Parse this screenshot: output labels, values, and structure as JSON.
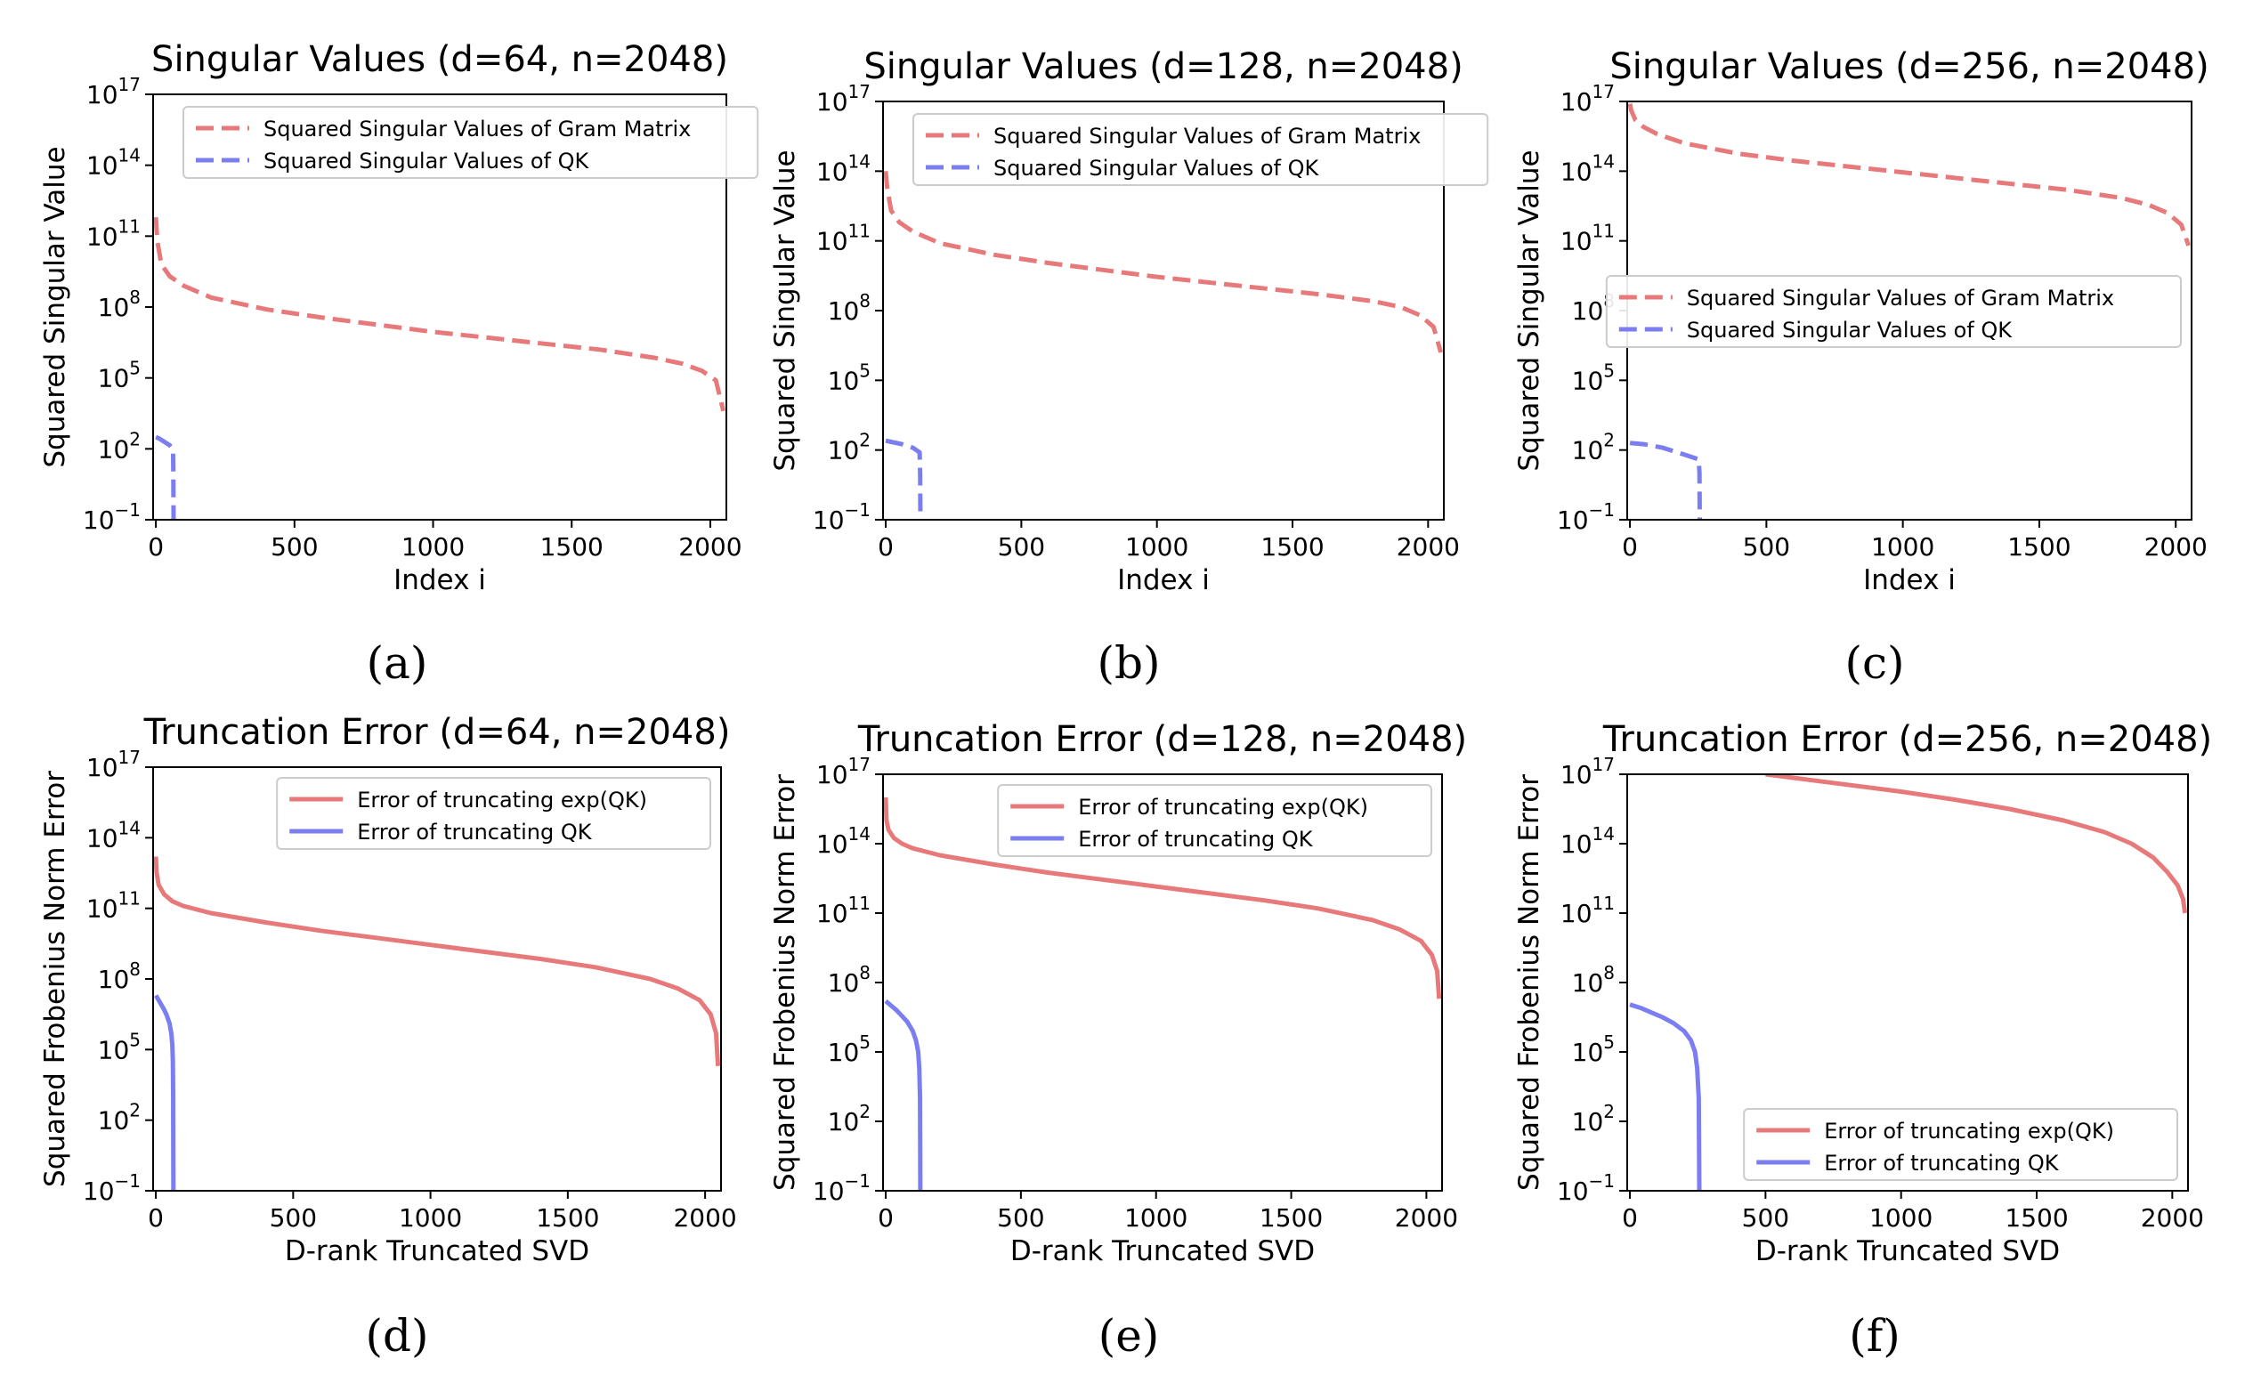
{
  "colors": {
    "gram": "#e8797b",
    "qk": "#7b7ef0",
    "axis": "#000000",
    "legend_border": "#cccccc"
  },
  "chart_data": [
    {
      "type": "line",
      "panel": "a",
      "caption": "(a)",
      "title": "Singular Values (d=64, n=2048)",
      "xlabel": "Index i",
      "ylabel": "Squared Singular Value",
      "log_y": true,
      "xlim": [
        -10,
        2058
      ],
      "ylim": [
        -1,
        17
      ],
      "xticks": [
        0,
        500,
        1000,
        1500,
        2000
      ],
      "xtick_labels": [
        "0",
        "500",
        "1000",
        "1500",
        "2000"
      ],
      "yticks": [
        -1,
        2,
        5,
        8,
        11,
        14,
        17
      ],
      "ytick_labels": [
        {
          "b": "10",
          "e": "−1"
        },
        {
          "b": "10",
          "e": "2"
        },
        {
          "b": "10",
          "e": "5"
        },
        {
          "b": "10",
          "e": "8"
        },
        {
          "b": "10",
          "e": "11"
        },
        {
          "b": "10",
          "e": "14"
        },
        {
          "b": "10",
          "e": "17"
        }
      ],
      "legend": {
        "position": "upper-center",
        "entries": [
          "Squared Singular Values of Gram Matrix",
          "Squared Singular Values of QK"
        ]
      },
      "series": [
        {
          "name": "Squared Singular Values of Gram Matrix",
          "color_key": "gram",
          "dash": true,
          "x": [
            0,
            5,
            20,
            50,
            100,
            200,
            400,
            600,
            800,
            1000,
            1200,
            1400,
            1600,
            1800,
            1900,
            1970,
            2020,
            2047
          ],
          "log10_y": [
            11.8,
            10.8,
            9.8,
            9.3,
            8.9,
            8.4,
            7.9,
            7.55,
            7.25,
            6.95,
            6.7,
            6.45,
            6.2,
            5.85,
            5.6,
            5.3,
            4.9,
            3.6
          ]
        },
        {
          "name": "Squared Singular Values of QK",
          "color_key": "qk",
          "dash": true,
          "x": [
            0,
            10,
            30,
            50,
            62,
            63,
            64
          ],
          "log10_y": [
            2.5,
            2.45,
            2.3,
            2.15,
            2.0,
            1.0,
            -1.0
          ]
        }
      ]
    },
    {
      "type": "line",
      "panel": "b",
      "caption": "(b)",
      "title": "Singular Values (d=128, n=2048)",
      "xlabel": "Index i",
      "ylabel": "Squared Singular Value",
      "log_y": true,
      "xlim": [
        -10,
        2058
      ],
      "ylim": [
        -1,
        17
      ],
      "xticks": [
        0,
        500,
        1000,
        1500,
        2000
      ],
      "xtick_labels": [
        "0",
        "500",
        "1000",
        "1500",
        "2000"
      ],
      "yticks": [
        -1,
        2,
        5,
        8,
        11,
        14,
        17
      ],
      "ytick_labels": [
        {
          "b": "10",
          "e": "−1"
        },
        {
          "b": "10",
          "e": "2"
        },
        {
          "b": "10",
          "e": "5"
        },
        {
          "b": "10",
          "e": "8"
        },
        {
          "b": "10",
          "e": "11"
        },
        {
          "b": "10",
          "e": "14"
        },
        {
          "b": "10",
          "e": "17"
        }
      ],
      "legend": {
        "position": "upper-center",
        "entries": [
          "Squared Singular Values of Gram Matrix",
          "Squared Singular Values of QK"
        ]
      },
      "series": [
        {
          "name": "Squared Singular Values of Gram Matrix",
          "color_key": "gram",
          "dash": true,
          "x": [
            0,
            5,
            20,
            50,
            100,
            200,
            400,
            600,
            800,
            1000,
            1200,
            1400,
            1600,
            1800,
            1900,
            1970,
            2020,
            2047
          ],
          "log10_y": [
            14.0,
            13.3,
            12.3,
            11.8,
            11.4,
            10.9,
            10.4,
            10.05,
            9.75,
            9.45,
            9.2,
            8.95,
            8.7,
            8.4,
            8.15,
            7.8,
            7.3,
            6.2
          ]
        },
        {
          "name": "Squared Singular Values of QK",
          "color_key": "qk",
          "dash": true,
          "x": [
            0,
            20,
            60,
            100,
            125,
            127,
            128
          ],
          "log10_y": [
            2.4,
            2.35,
            2.25,
            2.1,
            1.9,
            1.0,
            -1.0
          ]
        }
      ]
    },
    {
      "type": "line",
      "panel": "c",
      "caption": "(c)",
      "title": "Singular Values (d=256, n=2048)",
      "xlabel": "Index i",
      "ylabel": "Squared Singular Value",
      "log_y": true,
      "xlim": [
        -10,
        2058
      ],
      "ylim": [
        -1,
        17
      ],
      "xticks": [
        0,
        500,
        1000,
        1500,
        2000
      ],
      "xtick_labels": [
        "0",
        "500",
        "1000",
        "1500",
        "2000"
      ],
      "yticks": [
        -1,
        2,
        5,
        8,
        11,
        14,
        17
      ],
      "ytick_labels": [
        {
          "b": "10",
          "e": "−1"
        },
        {
          "b": "10",
          "e": "2"
        },
        {
          "b": "10",
          "e": "5"
        },
        {
          "b": "10",
          "e": "8"
        },
        {
          "b": "10",
          "e": "11"
        },
        {
          "b": "10",
          "e": "14"
        },
        {
          "b": "10",
          "e": "17"
        }
      ],
      "legend": {
        "position": "center-right",
        "entries": [
          "Squared Singular Values of Gram Matrix",
          "Squared Singular Values of QK"
        ]
      },
      "series": [
        {
          "name": "Squared Singular Values of Gram Matrix",
          "color_key": "gram",
          "dash": true,
          "x": [
            0,
            5,
            20,
            50,
            100,
            200,
            400,
            600,
            800,
            1000,
            1200,
            1400,
            1600,
            1800,
            1900,
            1970,
            2020,
            2047
          ],
          "log10_y": [
            16.9,
            16.6,
            16.2,
            15.9,
            15.6,
            15.2,
            14.75,
            14.45,
            14.2,
            13.95,
            13.7,
            13.45,
            13.2,
            12.85,
            12.55,
            12.2,
            11.7,
            10.8
          ]
        },
        {
          "name": "Squared Singular Values of QK",
          "color_key": "qk",
          "dash": true,
          "x": [
            0,
            50,
            120,
            200,
            252,
            255,
            256
          ],
          "log10_y": [
            2.3,
            2.25,
            2.1,
            1.8,
            1.6,
            1.0,
            -1.0
          ]
        }
      ]
    },
    {
      "type": "line",
      "panel": "d",
      "caption": "(d)",
      "title": "Truncation Error (d=64, n=2048)",
      "xlabel": "D-rank Truncated SVD",
      "ylabel": "Squared Frobenius Norm Error",
      "log_y": true,
      "xlim": [
        -10,
        2058
      ],
      "ylim": [
        -1,
        17
      ],
      "xticks": [
        0,
        500,
        1000,
        1500,
        2000
      ],
      "xtick_labels": [
        "0",
        "500",
        "1000",
        "1500",
        "2000"
      ],
      "yticks": [
        -1,
        2,
        5,
        8,
        11,
        14,
        17
      ],
      "ytick_labels": [
        {
          "b": "10",
          "e": "−1"
        },
        {
          "b": "10",
          "e": "2"
        },
        {
          "b": "10",
          "e": "5"
        },
        {
          "b": "10",
          "e": "8"
        },
        {
          "b": "10",
          "e": "11"
        },
        {
          "b": "10",
          "e": "14"
        },
        {
          "b": "10",
          "e": "17"
        }
      ],
      "legend": {
        "position": "upper-right",
        "entries": [
          "Error of truncating exp(QK)",
          "Error of truncating QK"
        ]
      },
      "series": [
        {
          "name": "Error of truncating exp(QK)",
          "color_key": "gram",
          "dash": false,
          "x": [
            0,
            3,
            10,
            30,
            60,
            100,
            200,
            400,
            600,
            800,
            1000,
            1200,
            1400,
            1600,
            1800,
            1900,
            1980,
            2020,
            2040,
            2047
          ],
          "log10_y": [
            13.2,
            12.5,
            12.0,
            11.6,
            11.3,
            11.1,
            10.8,
            10.4,
            10.05,
            9.75,
            9.45,
            9.15,
            8.85,
            8.5,
            8.0,
            7.6,
            7.1,
            6.5,
            5.7,
            4.3
          ]
        },
        {
          "name": "Error of truncating QK",
          "color_key": "qk",
          "dash": false,
          "x": [
            0,
            10,
            20,
            30,
            40,
            50,
            56,
            60,
            62,
            63,
            64
          ],
          "log10_y": [
            7.3,
            7.1,
            6.9,
            6.7,
            6.45,
            6.1,
            5.7,
            5.2,
            4.5,
            3.2,
            -1.0
          ]
        }
      ]
    },
    {
      "type": "line",
      "panel": "e",
      "caption": "(e)",
      "title": "Truncation Error (d=128, n=2048)",
      "xlabel": "D-rank Truncated SVD",
      "ylabel": "Squared Frobenius Norm Error",
      "log_y": true,
      "xlim": [
        -10,
        2058
      ],
      "ylim": [
        -1,
        17
      ],
      "xticks": [
        0,
        500,
        1000,
        1500,
        2000
      ],
      "xtick_labels": [
        "0",
        "500",
        "1000",
        "1500",
        "2000"
      ],
      "yticks": [
        -1,
        2,
        5,
        8,
        11,
        14,
        17
      ],
      "ytick_labels": [
        {
          "b": "10",
          "e": "−1"
        },
        {
          "b": "10",
          "e": "2"
        },
        {
          "b": "10",
          "e": "5"
        },
        {
          "b": "10",
          "e": "8"
        },
        {
          "b": "10",
          "e": "11"
        },
        {
          "b": "10",
          "e": "14"
        },
        {
          "b": "10",
          "e": "17"
        }
      ],
      "legend": {
        "position": "upper-right",
        "entries": [
          "Error of truncating exp(QK)",
          "Error of truncating QK"
        ]
      },
      "series": [
        {
          "name": "Error of truncating exp(QK)",
          "color_key": "gram",
          "dash": false,
          "x": [
            0,
            3,
            10,
            30,
            60,
            100,
            200,
            400,
            600,
            800,
            1000,
            1200,
            1400,
            1600,
            1800,
            1900,
            1980,
            2020,
            2040,
            2047
          ],
          "log10_y": [
            16.0,
            15.0,
            14.6,
            14.25,
            14.0,
            13.8,
            13.5,
            13.1,
            12.75,
            12.45,
            12.15,
            11.85,
            11.55,
            11.2,
            10.7,
            10.3,
            9.8,
            9.2,
            8.5,
            7.3
          ]
        },
        {
          "name": "Error of truncating QK",
          "color_key": "qk",
          "dash": false,
          "x": [
            0,
            20,
            40,
            60,
            80,
            100,
            112,
            120,
            124,
            127,
            128
          ],
          "log10_y": [
            7.2,
            7.0,
            6.8,
            6.55,
            6.3,
            5.9,
            5.5,
            5.0,
            4.3,
            3.0,
            -1.0
          ]
        }
      ]
    },
    {
      "type": "line",
      "panel": "f",
      "caption": "(f)",
      "title": "Truncation Error (d=256, n=2048)",
      "xlabel": "D-rank Truncated SVD",
      "ylabel": "Squared Frobenius Norm Error",
      "log_y": true,
      "xlim": [
        -10,
        2058
      ],
      "ylim": [
        -1,
        17
      ],
      "xticks": [
        0,
        500,
        1000,
        1500,
        2000
      ],
      "xtick_labels": [
        "0",
        "500",
        "1000",
        "1500",
        "2000"
      ],
      "yticks": [
        -1,
        2,
        5,
        8,
        11,
        14,
        17
      ],
      "ytick_labels": [
        {
          "b": "10",
          "e": "−1"
        },
        {
          "b": "10",
          "e": "2"
        },
        {
          "b": "10",
          "e": "5"
        },
        {
          "b": "10",
          "e": "8"
        },
        {
          "b": "10",
          "e": "11"
        },
        {
          "b": "10",
          "e": "14"
        },
        {
          "b": "10",
          "e": "17"
        }
      ],
      "legend": {
        "position": "lower-right",
        "entries": [
          "Error of truncating exp(QK)",
          "Error of truncating QK"
        ]
      },
      "series": [
        {
          "name": "Error of truncating exp(QK)",
          "color_key": "gram",
          "dash": false,
          "x": [
            500,
            600,
            800,
            1000,
            1200,
            1400,
            1600,
            1750,
            1850,
            1930,
            1980,
            2020,
            2040,
            2047
          ],
          "log10_y": [
            17.0,
            16.85,
            16.55,
            16.25,
            15.9,
            15.5,
            15.0,
            14.5,
            14.0,
            13.4,
            12.8,
            12.2,
            11.6,
            11.0
          ]
        },
        {
          "name": "Error of truncating QK",
          "color_key": "qk",
          "dash": false,
          "x": [
            0,
            40,
            80,
            120,
            160,
            200,
            225,
            240,
            248,
            254,
            256
          ],
          "log10_y": [
            7.05,
            6.9,
            6.7,
            6.5,
            6.25,
            5.9,
            5.5,
            5.0,
            4.3,
            3.0,
            -1.0
          ]
        }
      ]
    }
  ]
}
